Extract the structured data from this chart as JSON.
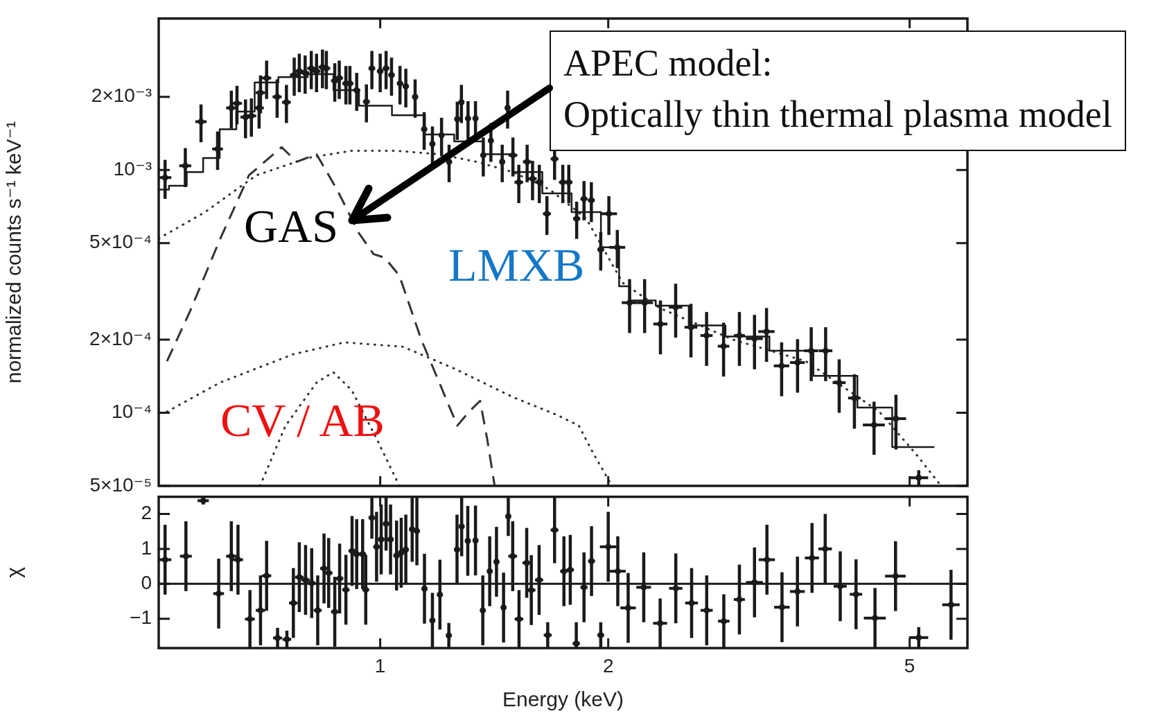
{
  "chart_data": [
    {
      "type": "scatter",
      "ylabel": "normalized counts s⁻¹ keV⁻¹",
      "log": "xy",
      "tick_labels": "y",
      "xlim": [
        0.51,
        5.96
      ],
      "ylim": [
        5e-05,
        0.0042
      ],
      "xticks": [
        1,
        2,
        5
      ],
      "yticks": [
        {
          "value": 5e-05,
          "label": "5×10⁻⁵"
        },
        {
          "value": 0.0001,
          "label": "10⁻⁴"
        },
        {
          "value": 0.0002,
          "label": "2×10⁻⁴"
        },
        {
          "value": 0.0005,
          "label": "5×10⁻⁴"
        },
        {
          "value": 0.001,
          "label": "10⁻³"
        },
        {
          "value": 0.002,
          "label": "2×10⁻³"
        }
      ],
      "annotations": [
        "APEC model:\nOptically thin thermal plasma model",
        "GAS",
        "LMXB",
        "CV / AB"
      ],
      "series": [
        {
          "color": "#1a1a1a",
          "x": [
            0.52,
            0.553,
            0.58,
            0.61,
            0.636,
            0.647,
            0.664,
            0.676,
            0.692,
            0.695,
            0.708,
            0.731,
            0.752,
            0.77,
            0.782,
            0.796,
            0.811,
            0.824,
            0.839,
            0.849,
            0.871,
            0.883,
            0.901,
            0.912,
            0.931,
            0.959,
            0.975,
            1.0,
            1.018,
            1.035,
            1.062,
            1.081,
            1.112,
            1.143,
            1.172,
            1.205,
            1.233,
            1.264,
            1.28,
            1.306,
            1.336,
            1.368,
            1.4,
            1.449,
            1.473,
            1.497,
            1.524,
            1.563,
            1.589,
            1.622,
            1.66,
            1.699,
            1.742,
            1.774,
            1.817,
            1.858,
            1.9,
            1.955,
            2.004,
            2.056,
            2.134,
            2.234,
            2.344,
            2.455,
            2.572,
            2.697,
            2.84,
            2.98,
            3.12,
            3.236,
            3.388,
            3.556,
            3.707,
            3.873,
            4.036,
            4.227,
            4.487,
            4.796,
            5.14
          ],
          "values": [
            0.00093,
            0.00104,
            0.00158,
            0.00122,
            0.0018,
            0.00188,
            0.00165,
            0.00167,
            0.0018,
            0.00208,
            0.00239,
            0.002,
            0.0019,
            0.00246,
            0.00255,
            0.00251,
            0.00262,
            0.00255,
            0.00265,
            0.00262,
            0.00233,
            0.00239,
            0.00227,
            0.00227,
            0.00213,
            0.00191,
            0.00262,
            0.00255,
            0.00262,
            0.00246,
            0.00227,
            0.00221,
            0.002,
            0.00147,
            0.00128,
            0.00139,
            0.00108,
            0.00162,
            0.0019,
            0.00163,
            0.00163,
            0.00115,
            0.00132,
            0.00108,
            0.0018,
            0.00115,
            0.00089,
            0.00108,
            0.00092,
            0.00089,
            0.00066,
            0.00111,
            0.00089,
            0.00089,
            0.00063,
            0.00076,
            0.00075,
            0.00047,
            0.00066,
            0.00048,
            0.000284,
            0.000284,
            0.000232,
            0.000272,
            0.000225,
            0.000208,
            0.000188,
            0.000208,
            0.000202,
            0.000216,
            0.000156,
            0.000161,
            0.00018,
            0.00018,
            0.000133,
            0.000115,
            8.91e-05,
            9.46e-05,
            5.4e-05
          ],
          "errors": [
            0.00017,
            0.00019,
            0.00028,
            0.00022,
            0.00032,
            0.00034,
            0.0003,
            0.0003,
            0.00032,
            0.00037,
            0.00043,
            0.00036,
            0.00034,
            0.00044,
            0.00046,
            0.00045,
            0.00047,
            0.00046,
            0.00048,
            0.00047,
            0.00042,
            0.00043,
            0.00041,
            0.00041,
            0.00038,
            0.00034,
            0.00047,
            0.00046,
            0.00047,
            0.00044,
            0.00041,
            0.0004,
            0.00036,
            0.00026,
            0.00023,
            0.00025,
            0.00019,
            0.00029,
            0.00034,
            0.00029,
            0.00029,
            0.00021,
            0.00024,
            0.00019,
            0.00032,
            0.00021,
            0.00016,
            0.00019,
            0.00017,
            0.00016,
            0.00012,
            0.0002,
            0.00016,
            0.00016,
            0.00011,
            0.00014,
            0.00014,
            8.5e-05,
            0.00012,
            8.6e-05,
            7.1e-05,
            7.1e-05,
            5.8e-05,
            6.8e-05,
            5.6e-05,
            5.2e-05,
            4.7e-05,
            5.2e-05,
            5.1e-05,
            5.4e-05,
            3.9e-05,
            4e-05,
            4.5e-05,
            4.5e-05,
            3.3e-05,
            2.9e-05,
            2.2e-05,
            2.4e-05,
            4e-06
          ],
          "xerrors": [
            0.01,
            0.01,
            0.01,
            0.01,
            0.01,
            0.01,
            0.01,
            0.01,
            0.01,
            0.01,
            0.01,
            0.01,
            0.01,
            0.01,
            0.01,
            0.01,
            0.01,
            0.01,
            0.01,
            0.01,
            0.01,
            0.01,
            0.01,
            0.01,
            0.01,
            0.01,
            0.01,
            0.01,
            0.01,
            0.01,
            0.01,
            0.01,
            0.01,
            0.01,
            0.01,
            0.01,
            0.01,
            0.01,
            0.01,
            0.01,
            0.01,
            0.01,
            0.01,
            0.01,
            0.01,
            0.02,
            0.02,
            0.02,
            0.02,
            0.02,
            0.02,
            0.02,
            0.02,
            0.02,
            0.02,
            0.02,
            0.02,
            0.02,
            0.05,
            0.05,
            0.05,
            0.05,
            0.05,
            0.05,
            0.05,
            0.05,
            0.05,
            0.05,
            0.08,
            0.08,
            0.08,
            0.08,
            0.08,
            0.08,
            0.08,
            0.08,
            0.15,
            0.15,
            0.15
          ]
        },
        {
          "type": "step",
          "color": "#1a1a1a",
          "x": [
            0.51,
            0.543,
            0.568,
            0.6,
            0.628,
            0.664,
            0.702,
            0.767,
            0.839,
            0.897,
            0.98,
            1.096,
            1.197,
            1.31,
            1.432,
            1.566,
            1.711,
            1.871,
            2.045,
            2.09,
            2.186,
            2.443,
            2.672,
            3.054,
            3.49,
            3.99,
            4.56,
            4.93,
            5.39
          ],
          "values": [
            0.00083,
            0.00086,
            0.00098,
            0.00112,
            0.00147,
            0.00174,
            0.00229,
            0.00241,
            0.00248,
            0.00213,
            0.00184,
            0.00168,
            0.0014,
            0.00131,
            0.00116,
            0.00098,
            0.0008,
            0.00067,
            0.00048,
            0.000332,
            0.00029,
            0.000276,
            0.000229,
            0.000206,
            0.00018,
            0.000142,
            0.000105,
            7.23e-05,
            7.23e-05
          ]
        },
        {
          "type": "line",
          "line_style": "dashed",
          "color": "#333333",
          "x": [
            0.523,
            0.561,
            0.614,
            0.671,
            0.741,
            0.776,
            0.824,
            0.877,
            0.937,
            0.98,
            1.014,
            1.06,
            1.133,
            1.197,
            1.264,
            1.31,
            1.355,
            1.385,
            1.416
          ],
          "values": [
            0.000163,
            0.000262,
            0.000515,
            0.00095,
            0.00124,
            0.00108,
            0.00116,
            0.00083,
            0.00055,
            0.00045,
            0.000435,
            0.000367,
            0.0002,
            0.000133,
            8.85e-05,
            0.000101,
            0.000112,
            7.73e-05,
            5e-05
          ]
        },
        {
          "type": "line",
          "line_style": "dotted",
          "color": "#333333",
          "x": [
            0.51,
            0.587,
            0.686,
            0.802,
            0.917,
            1.047,
            1.197,
            1.34,
            1.497,
            1.675,
            1.871,
            2.09,
            2.339,
            2.924,
            3.648,
            4.56,
            5.1,
            5.46
          ],
          "values": [
            0.000522,
            0.00067,
            0.00095,
            0.00112,
            0.0012,
            0.0012,
            0.00116,
            0.00108,
            0.00098,
            0.00083,
            0.00063,
            0.000343,
            0.00027,
            0.0002,
            0.000163,
            0.000101,
            6.75e-05,
            5.15e-05
          ]
        },
        {
          "type": "line",
          "line_style": "dotted",
          "color": "#333333",
          "x": [
            0.523,
            0.614,
            0.767,
            0.897,
            1.072,
            1.253,
            1.497,
            1.711,
            1.829,
            1.914,
            2.023
          ],
          "values": [
            0.000101,
            0.000133,
            0.000174,
            0.000195,
            0.000187,
            0.000152,
            0.000116,
            9.8e-05,
            8.85e-05,
            6.75e-05,
            5e-05
          ]
        },
        {
          "type": "line",
          "line_style": "dotted",
          "color": "#333333",
          "x": [
            0.694,
            0.75,
            0.824,
            0.867,
            0.917,
            0.991,
            1.06
          ],
          "values": [
            5e-05,
            8.85e-05,
            0.000133,
            0.000147,
            0.000124,
            7.73e-05,
            5e-05
          ]
        }
      ]
    },
    {
      "type": "scatter",
      "xlabel": "Energy (keV)",
      "ylabel": "χ",
      "log": "x",
      "color": "#1a1a1a",
      "xlim": [
        0.51,
        5.96
      ],
      "ylim": [
        -1.84,
        2.49
      ],
      "xticks": [
        1,
        2,
        5
      ],
      "yticks": [
        {
          "value": -1,
          "label": "−1"
        },
        0,
        1,
        2
      ],
      "ref_lines": [
        {
          "axis": "y",
          "value": 0
        }
      ],
      "x": [
        0.52,
        0.554,
        0.584,
        0.612,
        0.636,
        0.649,
        0.673,
        0.695,
        0.708,
        0.732,
        0.753,
        0.768,
        0.782,
        0.797,
        0.812,
        0.827,
        0.843,
        0.855,
        0.871,
        0.884,
        0.901,
        0.918,
        0.931,
        0.948,
        0.957,
        0.975,
        0.989,
        1.003,
        1.018,
        1.032,
        1.051,
        1.066,
        1.081,
        1.102,
        1.118,
        1.144,
        1.172,
        1.199,
        1.232,
        1.263,
        1.281,
        1.305,
        1.336,
        1.366,
        1.395,
        1.424,
        1.455,
        1.476,
        1.496,
        1.525,
        1.561,
        1.583,
        1.621,
        1.664,
        1.699,
        1.748,
        1.782,
        1.815,
        1.858,
        1.901,
        1.955,
        2.0,
        2.059,
        2.125,
        2.228,
        2.342,
        2.456,
        2.577,
        2.698,
        2.842,
        2.98,
        3.12,
        3.24,
        3.392,
        3.555,
        3.716,
        3.868,
        4.049,
        4.248,
        4.5,
        4.79,
        5.14,
        5.67
      ],
      "values": [
        0.69,
        0.79,
        2.38,
        -0.28,
        0.79,
        0.69,
        -1.01,
        -0.76,
        0.23,
        -1.55,
        -1.59,
        -0.55,
        0.19,
        0.11,
        0.02,
        -0.76,
        0.44,
        0.31,
        -0.8,
        0.15,
        -0.17,
        0.94,
        0.85,
        0.85,
        -0.17,
        1.89,
        1.06,
        1.27,
        1.72,
        1.27,
        0.81,
        0.89,
        0.98,
        1.56,
        1.51,
        -0.14,
        -1.05,
        -0.31,
        -1.48,
        0.98,
        1.64,
        1.23,
        1.24,
        -0.76,
        0.36,
        0.63,
        -0.68,
        1.93,
        0.79,
        -1.01,
        0.6,
        -0.18,
        0.11,
        -1.47,
        1.54,
        0.36,
        0.4,
        -1.71,
        -0.1,
        0.65,
        -1.47,
        1.06,
        0.36,
        -0.69,
        -0.1,
        -1.13,
        -0.13,
        -0.55,
        -0.76,
        -1.07,
        -0.45,
        0.04,
        0.69,
        -0.67,
        -0.22,
        0.74,
        1.0,
        -0.07,
        -0.3,
        -0.98,
        0.22,
        -1.54,
        -0.6
      ],
      "errors": [
        1,
        1,
        0.11,
        1,
        1,
        1,
        0.83,
        1,
        1,
        0.29,
        0.25,
        1,
        1,
        1,
        1,
        1,
        1,
        1,
        1,
        1,
        1,
        1,
        1,
        1,
        1,
        0.6,
        1,
        1,
        0.77,
        1,
        1,
        1,
        1,
        0.93,
        0.98,
        1,
        0.79,
        1,
        0.36,
        1,
        0.85,
        1,
        1,
        1,
        1,
        1,
        1,
        0.56,
        1,
        0.83,
        1,
        1,
        1,
        0.37,
        0.95,
        1,
        1,
        [
          -1.84,
          -1.1
        ],
        1,
        1,
        0.37,
        1,
        1,
        1,
        1,
        0.71,
        1,
        1,
        1,
        0.77,
        1,
        1,
        1,
        1,
        1,
        1,
        1,
        1,
        1,
        0.86,
        1,
        0.3,
        1
      ],
      "xerrors": [
        0.01,
        0.01,
        0.01,
        0.01,
        0.01,
        0.01,
        0.01,
        0.01,
        0.01,
        0.01,
        0.01,
        0.01,
        0.01,
        0.01,
        0.01,
        0.01,
        0.01,
        0.01,
        0.01,
        0.01,
        0.01,
        0.01,
        0.01,
        0.01,
        0.01,
        0.01,
        0.01,
        0.01,
        0.01,
        0.01,
        0.01,
        0.01,
        0.01,
        0.01,
        0.01,
        0.01,
        0.01,
        0.01,
        0.01,
        0.01,
        0.01,
        0.01,
        0.01,
        0.01,
        0.01,
        0.01,
        0.01,
        0.01,
        0.02,
        0.02,
        0.02,
        0.02,
        0.02,
        0.02,
        0.02,
        0.02,
        0.02,
        0.02,
        0.02,
        0.02,
        0.02,
        0.05,
        0.05,
        0.05,
        0.05,
        0.05,
        0.05,
        0.05,
        0.05,
        0.05,
        0.05,
        0.08,
        0.08,
        0.08,
        0.08,
        0.08,
        0.08,
        0.08,
        0.08,
        0.15,
        0.15,
        0.15,
        0.15
      ]
    }
  ]
}
